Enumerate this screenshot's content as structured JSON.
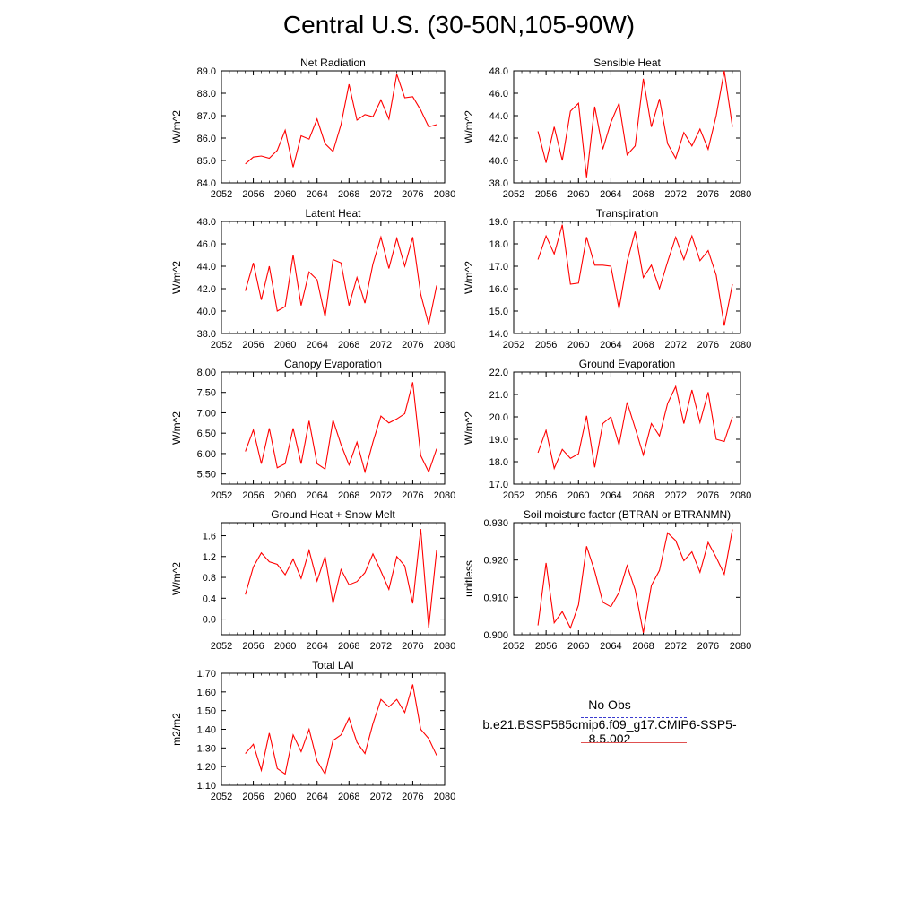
{
  "title": "Central U.S. (30-50N,105-90W)",
  "legend": {
    "obs_label": "No Obs",
    "model_label": "b.e21.BSSP585cmip6.f09_g17.CMIP6-SSP5-8.5.002",
    "obs_color": "#3b3bcf",
    "model_color": "#e05050"
  },
  "chart_data": [
    {
      "type": "line",
      "title": "Net Radiation",
      "ylabel": "W/m^2",
      "xlim": [
        2052,
        2080
      ],
      "ylim": [
        84.0,
        89.0
      ],
      "xticks": [
        "2052",
        "2056",
        "2060",
        "2064",
        "2068",
        "2072",
        "2076",
        "2080"
      ],
      "yticks": [
        "84.0",
        "85.0",
        "86.0",
        "87.0",
        "88.0",
        "89.0"
      ],
      "x": [
        2055,
        2056,
        2057,
        2058,
        2059,
        2060,
        2061,
        2062,
        2063,
        2064,
        2065,
        2066,
        2067,
        2068,
        2069,
        2070,
        2071,
        2072,
        2073,
        2074,
        2075,
        2076,
        2077,
        2078,
        2079
      ],
      "series": [
        {
          "color": "#ff0000",
          "values": [
            84.85,
            85.15,
            85.2,
            85.1,
            85.45,
            86.35,
            84.7,
            86.1,
            85.95,
            86.85,
            85.75,
            85.4,
            86.6,
            88.4,
            86.8,
            87.05,
            86.95,
            87.7,
            86.85,
            88.85,
            87.8,
            87.85,
            87.25,
            86.5,
            86.6
          ]
        }
      ]
    },
    {
      "type": "line",
      "title": "Sensible Heat",
      "ylabel": "W/m^2",
      "xlim": [
        2052,
        2080
      ],
      "ylim": [
        38.0,
        48.0
      ],
      "xticks": [
        "2052",
        "2056",
        "2060",
        "2064",
        "2068",
        "2072",
        "2076",
        "2080"
      ],
      "yticks": [
        "38.0",
        "40.0",
        "42.0",
        "44.0",
        "46.0",
        "48.0"
      ],
      "x": [
        2055,
        2056,
        2057,
        2058,
        2059,
        2060,
        2061,
        2062,
        2063,
        2064,
        2065,
        2066,
        2067,
        2068,
        2069,
        2070,
        2071,
        2072,
        2073,
        2074,
        2075,
        2076,
        2077,
        2078,
        2079
      ],
      "series": [
        {
          "color": "#ff0000",
          "values": [
            42.6,
            39.8,
            43.0,
            40.0,
            44.4,
            45.1,
            38.5,
            44.8,
            41.0,
            43.4,
            45.1,
            40.5,
            41.3,
            47.3,
            43.0,
            45.5,
            41.5,
            40.2,
            42.5,
            41.3,
            42.8,
            41.0,
            44.0,
            48.0,
            43.0
          ]
        }
      ]
    },
    {
      "type": "line",
      "title": "Latent Heat",
      "ylabel": "W/m^2",
      "xlim": [
        2052,
        2080
      ],
      "ylim": [
        38.0,
        48.0
      ],
      "xticks": [
        "2052",
        "2056",
        "2060",
        "2064",
        "2068",
        "2072",
        "2076",
        "2080"
      ],
      "yticks": [
        "38.0",
        "40.0",
        "42.0",
        "44.0",
        "46.0",
        "48.0"
      ],
      "x": [
        2055,
        2056,
        2057,
        2058,
        2059,
        2060,
        2061,
        2062,
        2063,
        2064,
        2065,
        2066,
        2067,
        2068,
        2069,
        2070,
        2071,
        2072,
        2073,
        2074,
        2075,
        2076,
        2077,
        2078,
        2079
      ],
      "series": [
        {
          "color": "#ff0000",
          "values": [
            41.8,
            44.3,
            41.0,
            44.0,
            40.0,
            40.4,
            45.0,
            40.5,
            43.5,
            42.8,
            39.5,
            44.6,
            44.3,
            40.5,
            43.0,
            40.7,
            44.2,
            46.6,
            43.8,
            46.5,
            44.0,
            46.6,
            41.5,
            38.8,
            42.3
          ]
        }
      ]
    },
    {
      "type": "line",
      "title": "Transpiration",
      "ylabel": "W/m^2",
      "xlim": [
        2052,
        2080
      ],
      "ylim": [
        14.0,
        19.0
      ],
      "xticks": [
        "2052",
        "2056",
        "2060",
        "2064",
        "2068",
        "2072",
        "2076",
        "2080"
      ],
      "yticks": [
        "14.0",
        "15.0",
        "16.0",
        "17.0",
        "18.0",
        "19.0"
      ],
      "x": [
        2055,
        2056,
        2057,
        2058,
        2059,
        2060,
        2061,
        2062,
        2063,
        2064,
        2065,
        2066,
        2067,
        2068,
        2069,
        2070,
        2071,
        2072,
        2073,
        2074,
        2075,
        2076,
        2077,
        2078,
        2079
      ],
      "series": [
        {
          "color": "#ff0000",
          "values": [
            17.3,
            18.35,
            17.55,
            18.85,
            16.2,
            16.25,
            18.3,
            17.05,
            17.05,
            17.0,
            15.1,
            17.2,
            18.55,
            16.5,
            17.05,
            16.0,
            17.2,
            18.3,
            17.3,
            18.35,
            17.25,
            17.7,
            16.6,
            14.35,
            16.2
          ]
        }
      ]
    },
    {
      "type": "line",
      "title": "Canopy Evaporation",
      "ylabel": "W/m^2",
      "xlim": [
        2052,
        2080
      ],
      "ylim": [
        5.25,
        8.0
      ],
      "xticks": [
        "2052",
        "2056",
        "2060",
        "2064",
        "2068",
        "2072",
        "2076",
        "2080"
      ],
      "yticks": [
        "5.50",
        "6.00",
        "6.50",
        "7.00",
        "7.50",
        "8.00"
      ],
      "x": [
        2055,
        2056,
        2057,
        2058,
        2059,
        2060,
        2061,
        2062,
        2063,
        2064,
        2065,
        2066,
        2067,
        2068,
        2069,
        2070,
        2071,
        2072,
        2073,
        2074,
        2075,
        2076,
        2077,
        2078,
        2079
      ],
      "series": [
        {
          "color": "#ff0000",
          "values": [
            6.05,
            6.58,
            5.75,
            6.62,
            5.65,
            5.75,
            6.62,
            5.75,
            6.8,
            5.75,
            5.62,
            6.82,
            6.22,
            5.72,
            6.28,
            5.55,
            6.28,
            6.92,
            6.75,
            6.85,
            6.98,
            7.75,
            5.95,
            5.55,
            6.12
          ]
        }
      ]
    },
    {
      "type": "line",
      "title": "Ground Evaporation",
      "ylabel": "W/m^2",
      "xlim": [
        2052,
        2080
      ],
      "ylim": [
        17.0,
        22.0
      ],
      "xticks": [
        "2052",
        "2056",
        "2060",
        "2064",
        "2068",
        "2072",
        "2076",
        "2080"
      ],
      "yticks": [
        "17.0",
        "18.0",
        "19.0",
        "20.0",
        "21.0",
        "22.0"
      ],
      "x": [
        2055,
        2056,
        2057,
        2058,
        2059,
        2060,
        2061,
        2062,
        2063,
        2064,
        2065,
        2066,
        2067,
        2068,
        2069,
        2070,
        2071,
        2072,
        2073,
        2074,
        2075,
        2076,
        2077,
        2078,
        2079
      ],
      "series": [
        {
          "color": "#ff0000",
          "values": [
            18.4,
            19.4,
            17.7,
            18.55,
            18.15,
            18.35,
            20.05,
            17.75,
            19.7,
            20.0,
            18.75,
            20.65,
            19.5,
            18.3,
            19.7,
            19.15,
            20.6,
            21.35,
            19.7,
            21.2,
            19.75,
            21.1,
            19.0,
            18.9,
            20.0
          ]
        }
      ]
    },
    {
      "type": "line",
      "title": "Ground Heat + Snow Melt",
      "ylabel": "W/m^2",
      "xlim": [
        2052,
        2080
      ],
      "ylim": [
        -0.3,
        1.85
      ],
      "xticks": [
        "2052",
        "2056",
        "2060",
        "2064",
        "2068",
        "2072",
        "2076",
        "2080"
      ],
      "yticks": [
        "0.0",
        "0.4",
        "0.8",
        "1.2",
        "1.6"
      ],
      "ytick_values": [
        0.0,
        0.4,
        0.8,
        1.2,
        1.6
      ],
      "x": [
        2055,
        2056,
        2057,
        2058,
        2059,
        2060,
        2061,
        2062,
        2063,
        2064,
        2065,
        2066,
        2067,
        2068,
        2069,
        2070,
        2071,
        2072,
        2073,
        2074,
        2075,
        2076,
        2077,
        2078,
        2079
      ],
      "series": [
        {
          "color": "#ff0000",
          "values": [
            0.47,
            1.0,
            1.27,
            1.1,
            1.05,
            0.85,
            1.15,
            0.78,
            1.32,
            0.73,
            1.2,
            0.3,
            0.95,
            0.66,
            0.72,
            0.89,
            1.25,
            0.92,
            0.57,
            1.2,
            1.02,
            0.3,
            1.73,
            -0.17,
            1.33
          ]
        }
      ]
    },
    {
      "type": "line",
      "title": "Soil moisture factor (BTRAN or BTRANMN)",
      "ylabel": "unitless",
      "xlim": [
        2052,
        2080
      ],
      "ylim": [
        0.9,
        0.93
      ],
      "xticks": [
        "2052",
        "2056",
        "2060",
        "2064",
        "2068",
        "2072",
        "2076",
        "2080"
      ],
      "yticks": [
        "0.900",
        "0.910",
        "0.920",
        "0.930"
      ],
      "x": [
        2055,
        2056,
        2057,
        2058,
        2059,
        2060,
        2061,
        2062,
        2063,
        2064,
        2065,
        2066,
        2067,
        2068,
        2069,
        2070,
        2071,
        2072,
        2073,
        2074,
        2075,
        2076,
        2077,
        2078,
        2079
      ],
      "series": [
        {
          "color": "#ff0000",
          "values": [
            0.9025,
            0.9192,
            0.9032,
            0.9062,
            0.9018,
            0.908,
            0.9237,
            0.917,
            0.9087,
            0.9075,
            0.9113,
            0.9185,
            0.912,
            0.9005,
            0.9132,
            0.9172,
            0.9273,
            0.9252,
            0.9198,
            0.9222,
            0.9167,
            0.9247,
            0.9207,
            0.9162,
            0.9282
          ]
        }
      ]
    },
    {
      "type": "line",
      "title": "Total LAI",
      "ylabel": "m2/m2",
      "xlim": [
        2052,
        2080
      ],
      "ylim": [
        1.1,
        1.7
      ],
      "xticks": [
        "2052",
        "2056",
        "2060",
        "2064",
        "2068",
        "2072",
        "2076",
        "2080"
      ],
      "yticks": [
        "1.10",
        "1.20",
        "1.30",
        "1.40",
        "1.50",
        "1.60",
        "1.70"
      ],
      "x": [
        2055,
        2056,
        2057,
        2058,
        2059,
        2060,
        2061,
        2062,
        2063,
        2064,
        2065,
        2066,
        2067,
        2068,
        2069,
        2070,
        2071,
        2072,
        2073,
        2074,
        2075,
        2076,
        2077,
        2078,
        2079
      ],
      "series": [
        {
          "color": "#ff0000",
          "values": [
            1.27,
            1.32,
            1.18,
            1.38,
            1.19,
            1.16,
            1.37,
            1.28,
            1.4,
            1.23,
            1.16,
            1.34,
            1.37,
            1.46,
            1.33,
            1.27,
            1.43,
            1.56,
            1.52,
            1.56,
            1.49,
            1.64,
            1.4,
            1.35,
            1.26
          ]
        }
      ]
    }
  ]
}
